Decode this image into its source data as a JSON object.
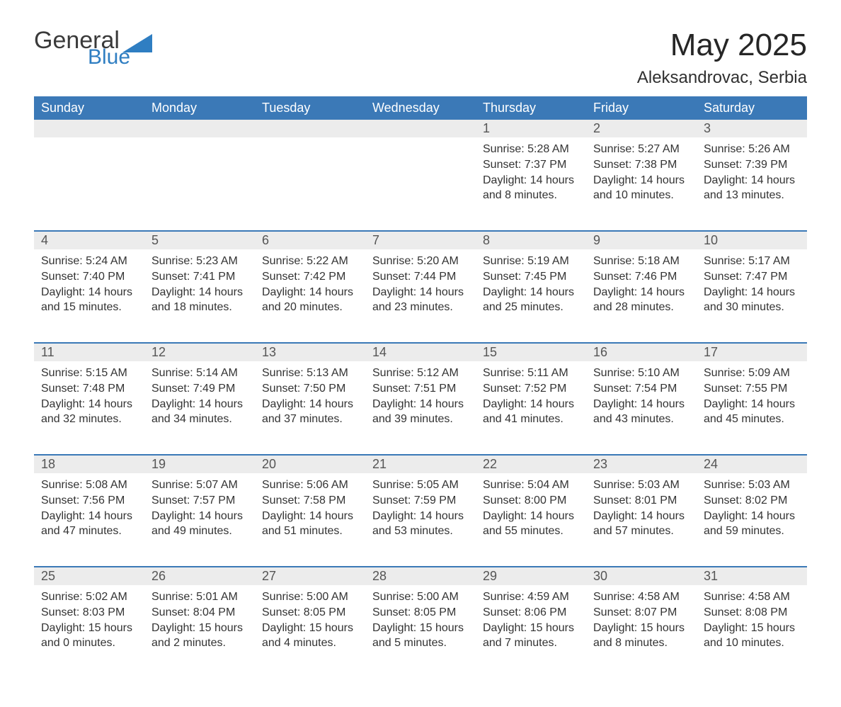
{
  "logo": {
    "word1": "General",
    "word2": "Blue"
  },
  "title": "May 2025",
  "subtitle": "Aleksandrovac, Serbia",
  "colors": {
    "header_bg": "#3b79b7",
    "header_text": "#ffffff",
    "daynum_bg": "#ececec",
    "row_divider": "#3b79b7",
    "logo_blue": "#2f7ec2",
    "page_bg": "#ffffff"
  },
  "weekdays": [
    "Sunday",
    "Monday",
    "Tuesday",
    "Wednesday",
    "Thursday",
    "Friday",
    "Saturday"
  ],
  "field_labels": {
    "sunrise": "Sunrise",
    "sunset": "Sunset",
    "daylight": "Daylight"
  },
  "weeks": [
    [
      null,
      null,
      null,
      null,
      {
        "n": 1,
        "sunrise": "5:28 AM",
        "sunset": "7:37 PM",
        "daylight": "14 hours and 8 minutes."
      },
      {
        "n": 2,
        "sunrise": "5:27 AM",
        "sunset": "7:38 PM",
        "daylight": "14 hours and 10 minutes."
      },
      {
        "n": 3,
        "sunrise": "5:26 AM",
        "sunset": "7:39 PM",
        "daylight": "14 hours and 13 minutes."
      }
    ],
    [
      {
        "n": 4,
        "sunrise": "5:24 AM",
        "sunset": "7:40 PM",
        "daylight": "14 hours and 15 minutes."
      },
      {
        "n": 5,
        "sunrise": "5:23 AM",
        "sunset": "7:41 PM",
        "daylight": "14 hours and 18 minutes."
      },
      {
        "n": 6,
        "sunrise": "5:22 AM",
        "sunset": "7:42 PM",
        "daylight": "14 hours and 20 minutes."
      },
      {
        "n": 7,
        "sunrise": "5:20 AM",
        "sunset": "7:44 PM",
        "daylight": "14 hours and 23 minutes."
      },
      {
        "n": 8,
        "sunrise": "5:19 AM",
        "sunset": "7:45 PM",
        "daylight": "14 hours and 25 minutes."
      },
      {
        "n": 9,
        "sunrise": "5:18 AM",
        "sunset": "7:46 PM",
        "daylight": "14 hours and 28 minutes."
      },
      {
        "n": 10,
        "sunrise": "5:17 AM",
        "sunset": "7:47 PM",
        "daylight": "14 hours and 30 minutes."
      }
    ],
    [
      {
        "n": 11,
        "sunrise": "5:15 AM",
        "sunset": "7:48 PM",
        "daylight": "14 hours and 32 minutes."
      },
      {
        "n": 12,
        "sunrise": "5:14 AM",
        "sunset": "7:49 PM",
        "daylight": "14 hours and 34 minutes."
      },
      {
        "n": 13,
        "sunrise": "5:13 AM",
        "sunset": "7:50 PM",
        "daylight": "14 hours and 37 minutes."
      },
      {
        "n": 14,
        "sunrise": "5:12 AM",
        "sunset": "7:51 PM",
        "daylight": "14 hours and 39 minutes."
      },
      {
        "n": 15,
        "sunrise": "5:11 AM",
        "sunset": "7:52 PM",
        "daylight": "14 hours and 41 minutes."
      },
      {
        "n": 16,
        "sunrise": "5:10 AM",
        "sunset": "7:54 PM",
        "daylight": "14 hours and 43 minutes."
      },
      {
        "n": 17,
        "sunrise": "5:09 AM",
        "sunset": "7:55 PM",
        "daylight": "14 hours and 45 minutes."
      }
    ],
    [
      {
        "n": 18,
        "sunrise": "5:08 AM",
        "sunset": "7:56 PM",
        "daylight": "14 hours and 47 minutes."
      },
      {
        "n": 19,
        "sunrise": "5:07 AM",
        "sunset": "7:57 PM",
        "daylight": "14 hours and 49 minutes."
      },
      {
        "n": 20,
        "sunrise": "5:06 AM",
        "sunset": "7:58 PM",
        "daylight": "14 hours and 51 minutes."
      },
      {
        "n": 21,
        "sunrise": "5:05 AM",
        "sunset": "7:59 PM",
        "daylight": "14 hours and 53 minutes."
      },
      {
        "n": 22,
        "sunrise": "5:04 AM",
        "sunset": "8:00 PM",
        "daylight": "14 hours and 55 minutes."
      },
      {
        "n": 23,
        "sunrise": "5:03 AM",
        "sunset": "8:01 PM",
        "daylight": "14 hours and 57 minutes."
      },
      {
        "n": 24,
        "sunrise": "5:03 AM",
        "sunset": "8:02 PM",
        "daylight": "14 hours and 59 minutes."
      }
    ],
    [
      {
        "n": 25,
        "sunrise": "5:02 AM",
        "sunset": "8:03 PM",
        "daylight": "15 hours and 0 minutes."
      },
      {
        "n": 26,
        "sunrise": "5:01 AM",
        "sunset": "8:04 PM",
        "daylight": "15 hours and 2 minutes."
      },
      {
        "n": 27,
        "sunrise": "5:00 AM",
        "sunset": "8:05 PM",
        "daylight": "15 hours and 4 minutes."
      },
      {
        "n": 28,
        "sunrise": "5:00 AM",
        "sunset": "8:05 PM",
        "daylight": "15 hours and 5 minutes."
      },
      {
        "n": 29,
        "sunrise": "4:59 AM",
        "sunset": "8:06 PM",
        "daylight": "15 hours and 7 minutes."
      },
      {
        "n": 30,
        "sunrise": "4:58 AM",
        "sunset": "8:07 PM",
        "daylight": "15 hours and 8 minutes."
      },
      {
        "n": 31,
        "sunrise": "4:58 AM",
        "sunset": "8:08 PM",
        "daylight": "15 hours and 10 minutes."
      }
    ]
  ]
}
